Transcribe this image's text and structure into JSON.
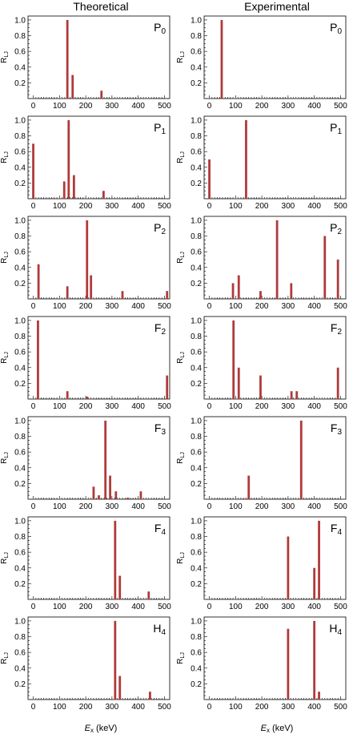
{
  "titles": {
    "left": "Theoretical",
    "right": "Experimental"
  },
  "y_axis_label": {
    "main": "R",
    "sub": "LJ"
  },
  "x_axis_label": {
    "var": "E",
    "sub": "x",
    "unit": " (keV)"
  },
  "bar_color": "#b03a3a",
  "chart_data": [
    {
      "type": "bar",
      "column": "Theoretical",
      "label_main": "P",
      "label_sub": "0",
      "xlim": [
        -20,
        520
      ],
      "ylim": [
        0,
        1.05
      ],
      "xticks": [
        0,
        100,
        200,
        300,
        400,
        500
      ],
      "yticks": [
        0.2,
        0.4,
        0.6,
        0.8,
        1.0
      ],
      "x": [
        130,
        150,
        260
      ],
      "values": [
        1.0,
        0.3,
        0.1
      ]
    },
    {
      "type": "bar",
      "column": "Experimental",
      "label_main": "P",
      "label_sub": "0",
      "xlim": [
        -20,
        520
      ],
      "ylim": [
        0,
        1.05
      ],
      "xticks": [
        0,
        100,
        200,
        300,
        400,
        500
      ],
      "yticks": [
        0.2,
        0.4,
        0.6,
        0.8,
        1.0
      ],
      "x": [
        47
      ],
      "values": [
        1.0
      ]
    },
    {
      "type": "bar",
      "column": "Theoretical",
      "label_main": "P",
      "label_sub": "1",
      "xlim": [
        -20,
        520
      ],
      "ylim": [
        0,
        1.05
      ],
      "xticks": [
        0,
        100,
        200,
        300,
        400,
        500
      ],
      "yticks": [
        0.2,
        0.4,
        0.6,
        0.8,
        1.0
      ],
      "x": [
        0,
        118,
        135,
        155,
        268
      ],
      "values": [
        0.7,
        0.22,
        1.0,
        0.3,
        0.1
      ]
    },
    {
      "type": "bar",
      "column": "Experimental",
      "label_main": "P",
      "label_sub": "1",
      "xlim": [
        -20,
        520
      ],
      "ylim": [
        0,
        1.05
      ],
      "xticks": [
        0,
        100,
        200,
        300,
        400,
        500
      ],
      "yticks": [
        0.2,
        0.4,
        0.6,
        0.8,
        1.0
      ],
      "x": [
        0,
        140
      ],
      "values": [
        0.5,
        1.0
      ]
    },
    {
      "type": "bar",
      "column": "Theoretical",
      "label_main": "P",
      "label_sub": "2",
      "xlim": [
        -20,
        520
      ],
      "ylim": [
        0,
        1.05
      ],
      "xticks": [
        0,
        100,
        200,
        300,
        400,
        500
      ],
      "yticks": [
        0.2,
        0.4,
        0.6,
        0.8,
        1.0
      ],
      "x": [
        20,
        130,
        205,
        220,
        340,
        510
      ],
      "values": [
        0.44,
        0.16,
        1.0,
        0.3,
        0.1,
        0.1
      ]
    },
    {
      "type": "bar",
      "column": "Experimental",
      "label_main": "P",
      "label_sub": "2",
      "xlim": [
        -20,
        520
      ],
      "ylim": [
        0,
        1.05
      ],
      "xticks": [
        0,
        100,
        200,
        300,
        400,
        500
      ],
      "yticks": [
        0.2,
        0.4,
        0.6,
        0.8,
        1.0
      ],
      "x": [
        90,
        112,
        195,
        258,
        312,
        440,
        490
      ],
      "values": [
        0.2,
        0.3,
        0.1,
        1.0,
        0.2,
        0.8,
        0.5
      ]
    },
    {
      "type": "bar",
      "column": "Theoretical",
      "label_main": "F",
      "label_sub": "2",
      "xlim": [
        -20,
        520
      ],
      "ylim": [
        0,
        1.05
      ],
      "xticks": [
        0,
        100,
        200,
        300,
        400,
        500
      ],
      "yticks": [
        0.2,
        0.4,
        0.6,
        0.8,
        1.0
      ],
      "x": [
        18,
        130,
        205,
        510
      ],
      "values": [
        1.0,
        0.1,
        0.03,
        0.3
      ]
    },
    {
      "type": "bar",
      "column": "Experimental",
      "label_main": "F",
      "label_sub": "2",
      "xlim": [
        -20,
        520
      ],
      "ylim": [
        0,
        1.05
      ],
      "xticks": [
        0,
        100,
        200,
        300,
        400,
        500
      ],
      "yticks": [
        0.2,
        0.4,
        0.6,
        0.8,
        1.0
      ],
      "x": [
        92,
        112,
        195,
        313,
        333,
        490
      ],
      "values": [
        1.0,
        0.4,
        0.3,
        0.1,
        0.1,
        0.4
      ]
    },
    {
      "type": "bar",
      "column": "Theoretical",
      "label_main": "F",
      "label_sub": "3",
      "xlim": [
        -20,
        520
      ],
      "ylim": [
        0,
        1.05
      ],
      "xticks": [
        0,
        100,
        200,
        300,
        400,
        500
      ],
      "yticks": [
        0.2,
        0.4,
        0.6,
        0.8,
        1.0
      ],
      "x": [
        230,
        250,
        275,
        293,
        315,
        360,
        410
      ],
      "values": [
        0.16,
        0.05,
        1.0,
        0.3,
        0.1,
        0.02,
        0.1
      ]
    },
    {
      "type": "bar",
      "column": "Experimental",
      "label_main": "F",
      "label_sub": "3",
      "xlim": [
        -20,
        520
      ],
      "ylim": [
        0,
        1.05
      ],
      "xticks": [
        0,
        100,
        200,
        300,
        400,
        500
      ],
      "yticks": [
        0.2,
        0.4,
        0.6,
        0.8,
        1.0
      ],
      "x": [
        150,
        350
      ],
      "values": [
        0.3,
        1.0
      ]
    },
    {
      "type": "bar",
      "column": "Theoretical",
      "label_main": "F",
      "label_sub": "4",
      "xlim": [
        -20,
        520
      ],
      "ylim": [
        0,
        1.05
      ],
      "xticks": [
        0,
        100,
        200,
        300,
        400,
        500
      ],
      "yticks": [
        0.2,
        0.4,
        0.6,
        0.8,
        1.0
      ],
      "x": [
        312,
        330,
        440
      ],
      "values": [
        1.0,
        0.3,
        0.1
      ]
    },
    {
      "type": "bar",
      "column": "Experimental",
      "label_main": "F",
      "label_sub": "4",
      "xlim": [
        -20,
        520
      ],
      "ylim": [
        0,
        1.05
      ],
      "xticks": [
        0,
        100,
        200,
        300,
        400,
        500
      ],
      "yticks": [
        0.2,
        0.4,
        0.6,
        0.8,
        1.0
      ],
      "x": [
        300,
        400,
        418
      ],
      "values": [
        0.8,
        0.4,
        1.0
      ]
    },
    {
      "type": "bar",
      "column": "Theoretical",
      "label_main": "H",
      "label_sub": "4",
      "xlim": [
        -20,
        520
      ],
      "ylim": [
        0,
        1.05
      ],
      "xticks": [
        0,
        100,
        200,
        300,
        400,
        500
      ],
      "yticks": [
        0.2,
        0.4,
        0.6,
        0.8,
        1.0
      ],
      "x": [
        312,
        330,
        445
      ],
      "values": [
        1.0,
        0.3,
        0.1
      ]
    },
    {
      "type": "bar",
      "column": "Experimental",
      "label_main": "H",
      "label_sub": "4",
      "xlim": [
        -20,
        520
      ],
      "ylim": [
        0,
        1.05
      ],
      "xticks": [
        0,
        100,
        200,
        300,
        400,
        500
      ],
      "yticks": [
        0.2,
        0.4,
        0.6,
        0.8,
        1.0
      ],
      "x": [
        300,
        400,
        418
      ],
      "values": [
        0.9,
        1.0,
        0.1
      ]
    }
  ]
}
